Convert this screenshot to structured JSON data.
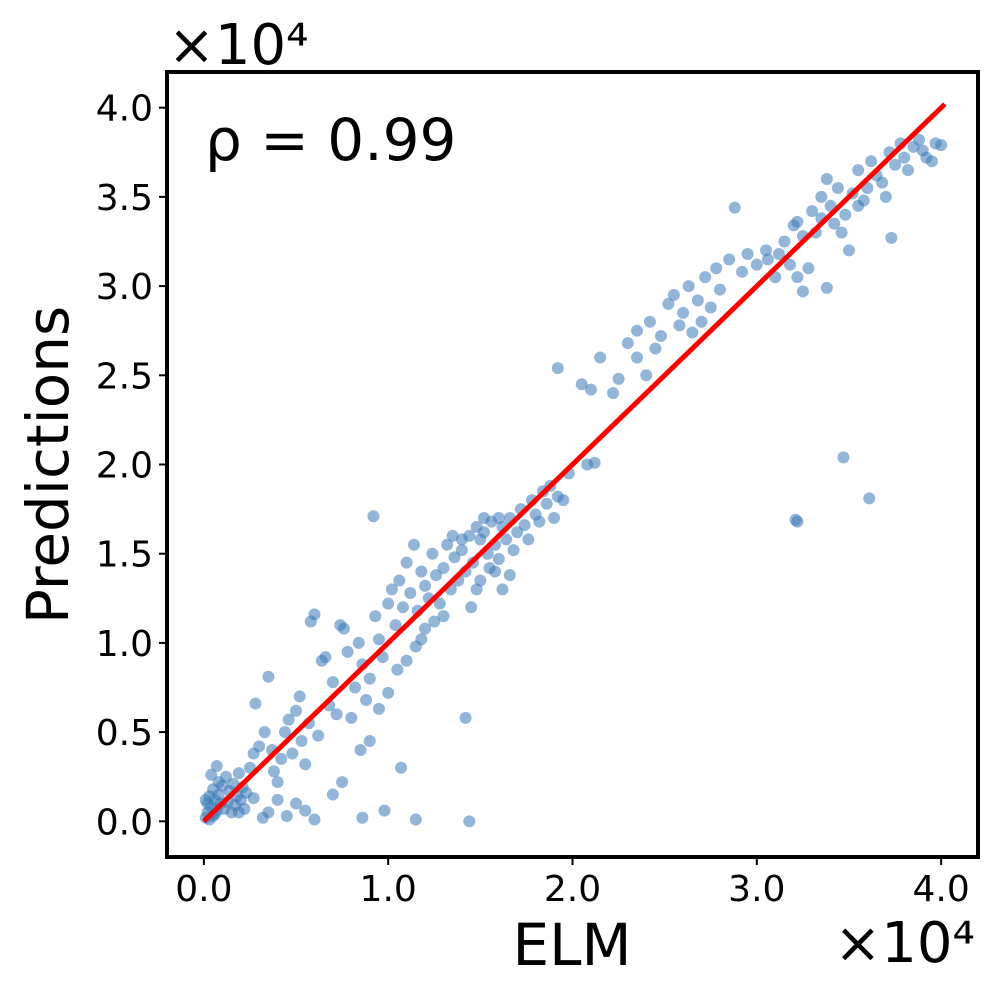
{
  "chart_data": {
    "type": "scatter",
    "xlabel": "ELM",
    "ylabel": "Predictions",
    "x_scale_label": "×10⁴",
    "y_scale_label": "×10⁴",
    "annotation": "ρ = 0.99",
    "xlim": [
      -0.2,
      4.2
    ],
    "ylim": [
      -0.2,
      4.2
    ],
    "x_ticks": [
      0.0,
      1.0,
      2.0,
      3.0,
      4.0
    ],
    "x_tick_labels": [
      "0.0",
      "1.0",
      "2.0",
      "3.0",
      "4.0"
    ],
    "y_ticks": [
      0.0,
      0.5,
      1.0,
      1.5,
      2.0,
      2.5,
      3.0,
      3.5,
      4.0
    ],
    "y_tick_labels": [
      "0.0",
      "0.5",
      "1.0",
      "1.5",
      "2.0",
      "2.5",
      "3.0",
      "3.5",
      "4.0"
    ],
    "grid": false,
    "point_color": "#3a7ab8",
    "line_color": "#ff0000",
    "fit_line": {
      "x": [
        0.0,
        4.02
      ],
      "y": [
        0.0,
        4.02
      ]
    },
    "points": [
      [
        0.01,
        0.02
      ],
      [
        0.02,
        0.05
      ],
      [
        0.03,
        0.01
      ],
      [
        0.04,
        0.08
      ],
      [
        0.05,
        0.03
      ],
      [
        0.06,
        0.12
      ],
      [
        0.07,
        0.06
      ],
      [
        0.08,
        0.15
      ],
      [
        0.09,
        0.1
      ],
      [
        0.1,
        0.2
      ],
      [
        0.02,
        0.1
      ],
      [
        0.03,
        0.14
      ],
      [
        0.05,
        0.18
      ],
      [
        0.06,
        0.04
      ],
      [
        0.08,
        0.22
      ],
      [
        0.11,
        0.07
      ],
      [
        0.12,
        0.25
      ],
      [
        0.13,
        0.11
      ],
      [
        0.14,
        0.17
      ],
      [
        0.15,
        0.05
      ],
      [
        0.16,
        0.21
      ],
      [
        0.17,
        0.09
      ],
      [
        0.18,
        0.14
      ],
      [
        0.19,
        0.27
      ],
      [
        0.2,
        0.12
      ],
      [
        0.21,
        0.19
      ],
      [
        0.22,
        0.07
      ],
      [
        0.04,
        0.26
      ],
      [
        0.01,
        0.12
      ],
      [
        0.07,
        0.31
      ],
      [
        0.25,
        0.3
      ],
      [
        0.27,
        0.38
      ],
      [
        0.28,
        0.66
      ],
      [
        0.3,
        0.42
      ],
      [
        0.33,
        0.5
      ],
      [
        0.35,
        0.81
      ],
      [
        0.37,
        0.4
      ],
      [
        0.38,
        0.28
      ],
      [
        0.4,
        0.22
      ],
      [
        0.42,
        0.35
      ],
      [
        0.44,
        0.5
      ],
      [
        0.46,
        0.57
      ],
      [
        0.48,
        0.38
      ],
      [
        0.5,
        0.62
      ],
      [
        0.52,
        0.7
      ],
      [
        0.53,
        0.45
      ],
      [
        0.55,
        0.32
      ],
      [
        0.57,
        0.55
      ],
      [
        0.58,
        1.12
      ],
      [
        0.6,
        1.16
      ],
      [
        0.62,
        0.48
      ],
      [
        0.64,
        0.9
      ],
      [
        0.66,
        0.92
      ],
      [
        0.68,
        0.65
      ],
      [
        0.7,
        0.78
      ],
      [
        0.72,
        0.6
      ],
      [
        0.74,
        1.1
      ],
      [
        0.76,
        1.08
      ],
      [
        0.78,
        0.95
      ],
      [
        0.8,
        0.58
      ],
      [
        0.35,
        0.05
      ],
      [
        0.4,
        0.12
      ],
      [
        0.45,
        0.03
      ],
      [
        0.5,
        0.1
      ],
      [
        0.55,
        0.06
      ],
      [
        0.27,
        0.13
      ],
      [
        0.32,
        0.02
      ],
      [
        0.6,
        0.01
      ],
      [
        0.23,
        0.16
      ],
      [
        0.19,
        0.05
      ],
      [
        0.82,
        0.75
      ],
      [
        0.84,
        1.0
      ],
      [
        0.86,
        0.88
      ],
      [
        0.88,
        0.68
      ],
      [
        0.9,
        0.8
      ],
      [
        0.92,
        1.71
      ],
      [
        0.93,
        1.15
      ],
      [
        0.95,
        1.02
      ],
      [
        0.97,
        0.92
      ],
      [
        1.0,
        1.22
      ],
      [
        1.02,
        1.3
      ],
      [
        1.04,
        1.1
      ],
      [
        1.06,
        1.35
      ],
      [
        1.08,
        1.2
      ],
      [
        1.1,
        1.45
      ],
      [
        1.12,
        1.28
      ],
      [
        1.14,
        1.55
      ],
      [
        1.16,
        1.18
      ],
      [
        1.18,
        1.4
      ],
      [
        1.2,
        1.32
      ],
      [
        1.22,
        1.25
      ],
      [
        1.24,
        1.5
      ],
      [
        1.26,
        1.38
      ],
      [
        1.28,
        1.22
      ],
      [
        1.3,
        1.42
      ],
      [
        1.32,
        1.55
      ],
      [
        1.34,
        1.3
      ],
      [
        1.36,
        1.48
      ],
      [
        1.38,
        1.35
      ],
      [
        1.4,
        1.52
      ],
      [
        1.42,
        1.4
      ],
      [
        1.44,
        1.6
      ],
      [
        1.46,
        1.45
      ],
      [
        1.48,
        1.3
      ],
      [
        1.5,
        1.58
      ],
      [
        1.52,
        1.62
      ],
      [
        1.54,
        1.5
      ],
      [
        1.56,
        1.68
      ],
      [
        1.58,
        1.55
      ],
      [
        1.6,
        1.47
      ],
      [
        1.62,
        1.65
      ],
      [
        1.64,
        1.58
      ],
      [
        1.66,
        1.7
      ],
      [
        1.68,
        1.52
      ],
      [
        1.7,
        1.62
      ],
      [
        1.72,
        1.75
      ],
      [
        1.74,
        1.66
      ],
      [
        1.76,
        1.58
      ],
      [
        1.78,
        1.8
      ],
      [
        1.8,
        1.72
      ],
      [
        1.82,
        1.68
      ],
      [
        1.84,
        1.85
      ],
      [
        1.86,
        1.78
      ],
      [
        1.88,
        1.88
      ],
      [
        1.9,
        1.7
      ],
      [
        1.92,
        1.82
      ],
      [
        1.95,
        1.8
      ],
      [
        1.98,
        1.95
      ],
      [
        2.08,
        2.0
      ],
      [
        2.12,
        2.01
      ],
      [
        1.45,
        1.2
      ],
      [
        1.5,
        1.35
      ],
      [
        1.55,
        1.42
      ],
      [
        1.58,
        1.4
      ],
      [
        1.62,
        1.3
      ],
      [
        1.66,
        1.38
      ],
      [
        1.6,
        1.7
      ],
      [
        1.52,
        1.7
      ],
      [
        1.48,
        1.65
      ],
      [
        1.4,
        1.58
      ],
      [
        1.35,
        1.6
      ],
      [
        1.3,
        1.15
      ],
      [
        1.25,
        1.12
      ],
      [
        1.2,
        1.08
      ],
      [
        1.18,
        1.02
      ],
      [
        1.15,
        0.98
      ],
      [
        1.1,
        0.9
      ],
      [
        1.05,
        0.85
      ],
      [
        1.0,
        0.72
      ],
      [
        0.95,
        0.63
      ],
      [
        0.9,
        0.45
      ],
      [
        0.86,
        0.02
      ],
      [
        0.98,
        0.06
      ],
      [
        1.15,
        0.01
      ],
      [
        1.44,
        0.0
      ],
      [
        1.42,
        0.58
      ],
      [
        1.07,
        0.3
      ],
      [
        0.7,
        0.15
      ],
      [
        0.75,
        0.22
      ],
      [
        0.85,
        0.4
      ],
      [
        2.05,
        2.45
      ],
      [
        2.1,
        2.42
      ],
      [
        2.15,
        2.6
      ],
      [
        1.92,
        2.54
      ],
      [
        2.3,
        2.68
      ],
      [
        2.35,
        2.75
      ],
      [
        2.42,
        2.8
      ],
      [
        2.48,
        2.72
      ],
      [
        2.52,
        2.9
      ],
      [
        2.55,
        2.95
      ],
      [
        2.6,
        2.85
      ],
      [
        2.63,
        3.0
      ],
      [
        2.68,
        2.92
      ],
      [
        2.72,
        3.05
      ],
      [
        2.78,
        3.1
      ],
      [
        2.8,
        2.98
      ],
      [
        2.85,
        3.15
      ],
      [
        2.88,
        3.44
      ],
      [
        2.92,
        3.08
      ],
      [
        2.95,
        3.18
      ],
      [
        3.0,
        3.12
      ],
      [
        3.05,
        3.2
      ],
      [
        3.1,
        3.05
      ],
      [
        3.15,
        3.25
      ],
      [
        3.2,
        3.34
      ],
      [
        3.22,
        3.36
      ],
      [
        3.25,
        3.28
      ],
      [
        3.28,
        3.1
      ],
      [
        3.3,
        3.42
      ],
      [
        3.32,
        3.3
      ],
      [
        3.35,
        3.5
      ],
      [
        3.38,
        3.6
      ],
      [
        3.4,
        3.45
      ],
      [
        3.42,
        3.35
      ],
      [
        3.44,
        3.55
      ],
      [
        3.46,
        3.3
      ],
      [
        3.48,
        3.4
      ],
      [
        3.5,
        3.2
      ],
      [
        3.52,
        3.52
      ],
      [
        3.55,
        3.65
      ],
      [
        3.58,
        3.48
      ],
      [
        3.6,
        3.55
      ],
      [
        3.62,
        3.7
      ],
      [
        3.65,
        3.62
      ],
      [
        3.68,
        3.58
      ],
      [
        3.7,
        3.5
      ],
      [
        3.72,
        3.75
      ],
      [
        3.75,
        3.68
      ],
      [
        3.78,
        3.8
      ],
      [
        3.8,
        3.72
      ],
      [
        3.82,
        3.65
      ],
      [
        3.85,
        3.78
      ],
      [
        3.88,
        3.82
      ],
      [
        3.9,
        3.76
      ],
      [
        3.92,
        3.72
      ],
      [
        3.95,
        3.7
      ],
      [
        3.97,
        3.8
      ],
      [
        4.0,
        3.79
      ],
      [
        3.73,
        3.27
      ],
      [
        3.38,
        2.99
      ],
      [
        3.25,
        2.97
      ],
      [
        3.22,
        3.05
      ],
      [
        3.18,
        3.12
      ],
      [
        3.06,
        3.15
      ],
      [
        2.7,
        2.8
      ],
      [
        2.65,
        2.74
      ],
      [
        2.58,
        2.78
      ],
      [
        2.4,
        2.5
      ],
      [
        2.22,
        2.4
      ],
      [
        2.25,
        2.48
      ],
      [
        3.21,
        1.69
      ],
      [
        3.22,
        1.68
      ],
      [
        3.47,
        2.04
      ],
      [
        3.61,
        1.81
      ],
      [
        2.35,
        2.6
      ],
      [
        2.45,
        2.65
      ],
      [
        2.75,
        2.88
      ],
      [
        3.12,
        3.18
      ],
      [
        3.35,
        3.38
      ],
      [
        3.55,
        3.45
      ]
    ]
  }
}
